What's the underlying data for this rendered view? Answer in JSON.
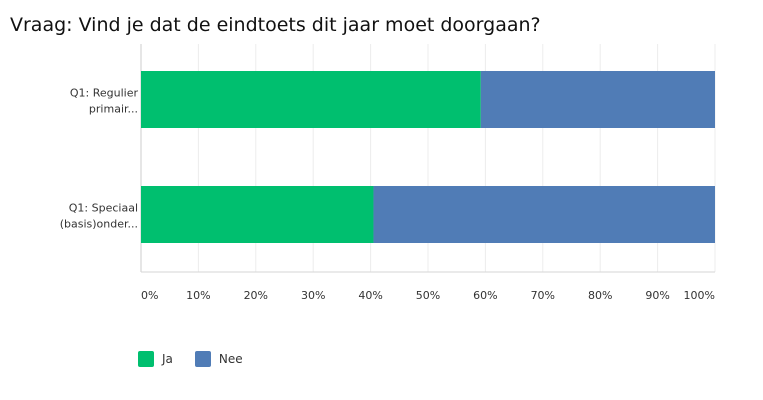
{
  "chart_data": {
    "type": "bar",
    "orientation": "horizontal",
    "stacked": true,
    "title": "Vraag: Vind je dat de eindtoets dit jaar moet doorgaan?",
    "categories": [
      [
        "Q1: Regulier",
        "primair..."
      ],
      [
        "Q1: Speciaal",
        "(basis)onder..."
      ]
    ],
    "series": [
      {
        "name": "Ja",
        "color": "#00bf6f",
        "values": [
          59.2,
          40.5
        ]
      },
      {
        "name": "Nee",
        "color": "#507cb6",
        "values": [
          40.8,
          59.5
        ]
      }
    ],
    "x_ticks": [
      "0%",
      "10%",
      "20%",
      "30%",
      "40%",
      "50%",
      "60%",
      "70%",
      "80%",
      "90%",
      "100%"
    ],
    "xlim": [
      0,
      100
    ],
    "grid": true,
    "legend_position": "bottom-left"
  }
}
